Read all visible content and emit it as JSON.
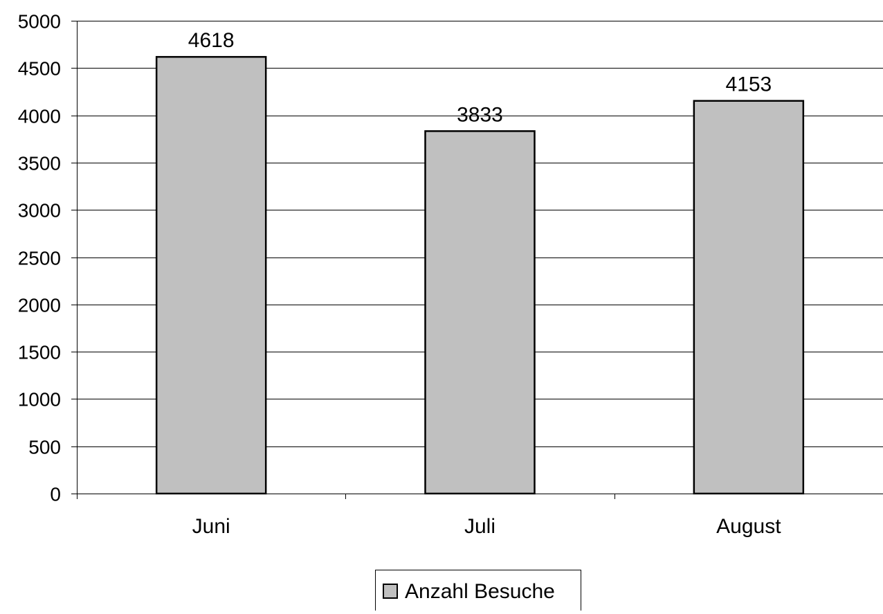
{
  "chart_data": {
    "type": "bar",
    "categories": [
      "Juni",
      "Juli",
      "August"
    ],
    "series": [
      {
        "name": "Anzahl Besuche",
        "values": [
          4618,
          3833,
          4153
        ],
        "color": "#c0c0c0"
      }
    ],
    "data_labels": [
      "4618",
      "3833",
      "4153"
    ],
    "ylim": [
      0,
      5000
    ],
    "yticks": [
      0,
      500,
      1000,
      1500,
      2000,
      2500,
      3000,
      3500,
      4000,
      4500,
      5000
    ],
    "ytick_labels": [
      "0",
      "500",
      "1000",
      "1500",
      "2000",
      "2500",
      "3000",
      "3500",
      "4000",
      "4500",
      "5000"
    ],
    "grid": true,
    "legend": {
      "position": "bottom",
      "entries": [
        "Anzahl Besuche"
      ]
    },
    "colors": {
      "bar_fill": "#c0c0c0",
      "bar_stroke": "#000000",
      "grid": "#000000",
      "axis": "#000000"
    }
  }
}
